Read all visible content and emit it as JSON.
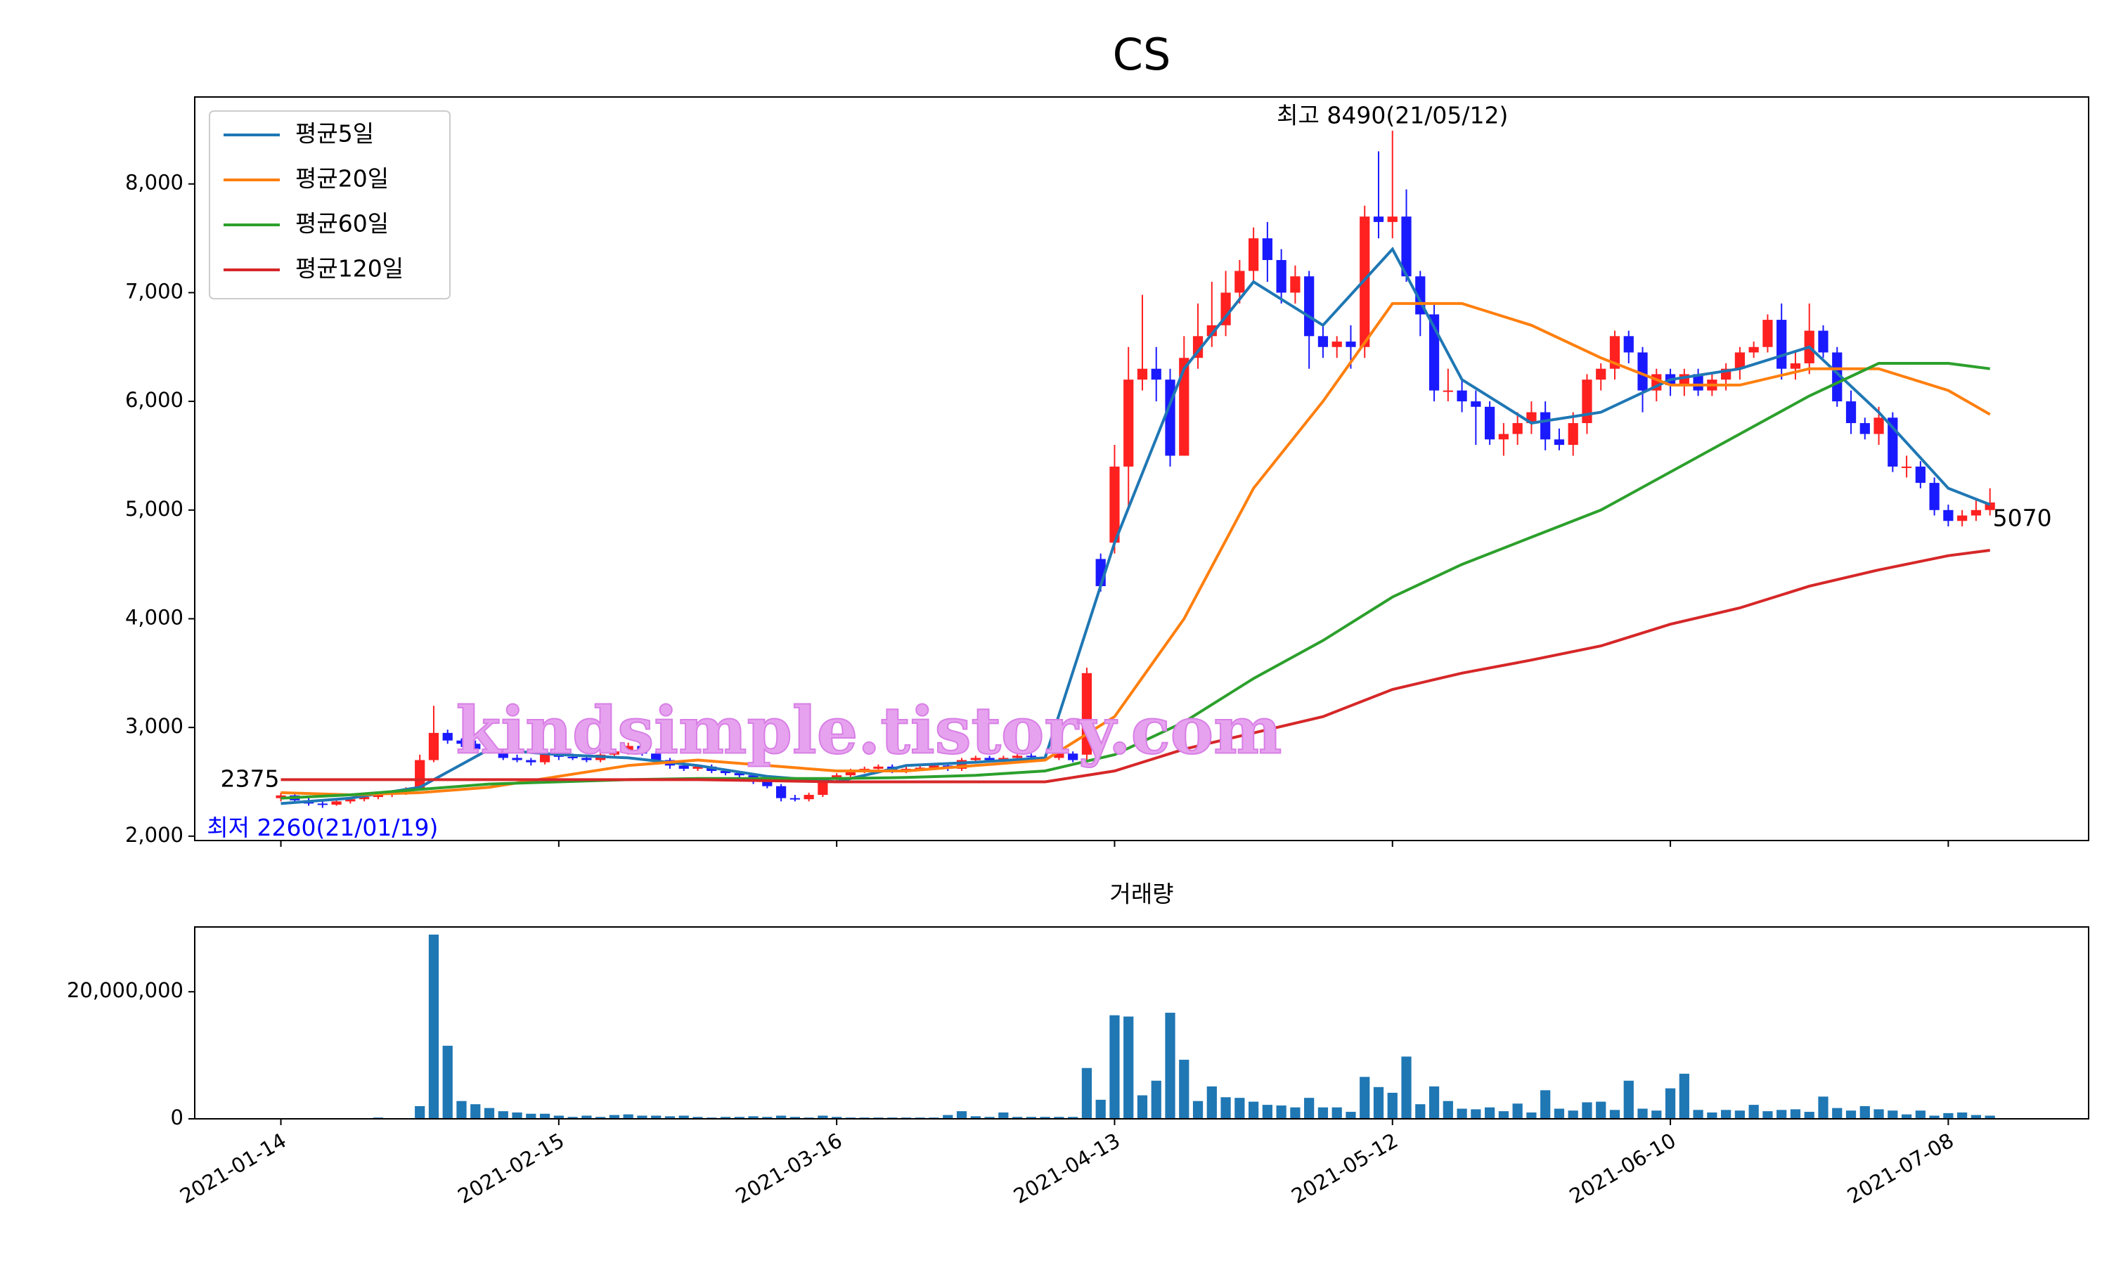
{
  "chart_data": [
    {
      "type": "candlestick",
      "title": "CS",
      "open": [
        2350,
        2375,
        2330,
        2300,
        2290,
        2320,
        2340,
        2360,
        2380,
        2400,
        2430,
        2700,
        2950,
        2880,
        2850,
        2800,
        2780,
        2720,
        2700,
        2680,
        2750,
        2730,
        2720,
        2700,
        2750,
        2780,
        2830,
        2760,
        2700,
        2650,
        2620,
        2640,
        2600,
        2580,
        2560,
        2500,
        2460,
        2350,
        2340,
        2380,
        2520,
        2560,
        2600,
        2620,
        2640,
        2600,
        2620,
        2630,
        2650,
        2620,
        2700,
        2720,
        2700,
        2720,
        2740,
        2730,
        2720,
        2760,
        2750,
        4550,
        4700,
        5400,
        6200,
        6300,
        6200,
        5500,
        6400,
        6600,
        6700,
        7000,
        7200,
        7500,
        7300,
        7000,
        7150,
        6600,
        6500,
        6550,
        6500,
        7700,
        7650,
        7700,
        7150,
        6800,
        6100,
        6100,
        6000,
        5950,
        5650,
        5700,
        5800,
        5900,
        5650,
        5600,
        5800,
        6200,
        6300,
        6600,
        6450,
        6100,
        6250,
        6150,
        6250,
        6100,
        6200,
        6300,
        6450,
        6500,
        6750,
        6300,
        6350,
        6650,
        6450,
        6000,
        5800,
        5700,
        5850,
        5400,
        5400,
        5250,
        5000,
        4900,
        4950,
        5000
      ],
      "high": [
        2400,
        2390,
        2350,
        2320,
        2340,
        2360,
        2380,
        2400,
        2420,
        2450,
        2750,
        3200,
        2980,
        2900,
        2880,
        2830,
        2800,
        2750,
        2720,
        2780,
        2780,
        2760,
        2740,
        2780,
        2800,
        2860,
        2850,
        2780,
        2720,
        2680,
        2660,
        2660,
        2620,
        2600,
        2580,
        2520,
        2480,
        2380,
        2400,
        2540,
        2580,
        2620,
        2640,
        2660,
        2660,
        2640,
        2650,
        2670,
        2660,
        2720,
        2740,
        2740,
        2740,
        2760,
        2760,
        2750,
        2780,
        2780,
        3550,
        4600,
        5600,
        6500,
        6980,
        6500,
        6300,
        6600,
        6900,
        7100,
        7200,
        7300,
        7600,
        7650,
        7400,
        7250,
        7200,
        6700,
        6600,
        6700,
        7800,
        8300,
        8490,
        7950,
        7200,
        6900,
        6300,
        6200,
        6100,
        6000,
        5800,
        5900,
        6000,
        6000,
        5750,
        5900,
        6250,
        6350,
        6650,
        6650,
        6500,
        6300,
        6300,
        6300,
        6300,
        6250,
        6350,
        6500,
        6550,
        6800,
        6900,
        6450,
        6900,
        6700,
        6500,
        6100,
        5850,
        5950,
        5900,
        5500,
        5450,
        5300,
        5050,
        5000,
        5100,
        5200
      ],
      "low": [
        2320,
        2300,
        2280,
        2260,
        2280,
        2300,
        2320,
        2340,
        2360,
        2380,
        2420,
        2680,
        2850,
        2820,
        2780,
        2760,
        2700,
        2680,
        2650,
        2660,
        2700,
        2700,
        2680,
        2680,
        2720,
        2750,
        2740,
        2680,
        2620,
        2600,
        2600,
        2580,
        2560,
        2540,
        2480,
        2440,
        2320,
        2320,
        2320,
        2360,
        2500,
        2540,
        2580,
        2600,
        2580,
        2580,
        2600,
        2610,
        2600,
        2600,
        2680,
        2680,
        2680,
        2700,
        2720,
        2700,
        2700,
        2680,
        2700,
        4250,
        4600,
        5000,
        6100,
        6000,
        5400,
        5500,
        6300,
        6500,
        6600,
        6900,
        7100,
        7100,
        6900,
        6900,
        6300,
        6400,
        6400,
        6300,
        6400,
        7500,
        7500,
        7100,
        6600,
        6000,
        6000,
        5900,
        5600,
        5600,
        5500,
        5600,
        5700,
        5550,
        5550,
        5500,
        5700,
        6100,
        6200,
        6350,
        5900,
        6000,
        6050,
        6050,
        6050,
        6050,
        6100,
        6200,
        6400,
        6450,
        6200,
        6200,
        6250,
        6400,
        5950,
        5700,
        5650,
        5600,
        5350,
        5300,
        5200,
        4950,
        4850,
        4850,
        4900,
        4950
      ],
      "close": [
        2375,
        2330,
        2300,
        2290,
        2320,
        2340,
        2360,
        2380,
        2400,
        2420,
        2700,
        2950,
        2880,
        2850,
        2800,
        2780,
        2720,
        2700,
        2680,
        2750,
        2730,
        2720,
        2700,
        2750,
        2780,
        2830,
        2760,
        2700,
        2650,
        2620,
        2640,
        2600,
        2580,
        2560,
        2500,
        2460,
        2350,
        2340,
        2380,
        2520,
        2560,
        2600,
        2620,
        2640,
        2600,
        2620,
        2630,
        2650,
        2620,
        2700,
        2720,
        2700,
        2720,
        2740,
        2730,
        2720,
        2760,
        2700,
        3500,
        4300,
        5400,
        6200,
        6300,
        6200,
        5500,
        6400,
        6600,
        6700,
        7000,
        7200,
        7500,
        7300,
        7000,
        7150,
        6600,
        6500,
        6550,
        6500,
        7700,
        7650,
        7700,
        7150,
        6800,
        6100,
        6100,
        6000,
        5950,
        5650,
        5700,
        5800,
        5900,
        5650,
        5600,
        5800,
        6200,
        6300,
        6600,
        6450,
        6100,
        6250,
        6150,
        6250,
        6100,
        6200,
        6300,
        6450,
        6500,
        6750,
        6300,
        6350,
        6650,
        6450,
        6000,
        5800,
        5700,
        5850,
        5400,
        5400,
        5250,
        5000,
        4900,
        4950,
        5000,
        5070
      ],
      "up_color": "#ff2020",
      "down_color": "#1a1aff",
      "series": [
        {
          "name": "평균5일",
          "color": "#1f77b4",
          "x": [
            0,
            5,
            10,
            15,
            20,
            25,
            30,
            35,
            40,
            45,
            50,
            55,
            60,
            65,
            70,
            75,
            80,
            85,
            90,
            95,
            100,
            105,
            110,
            115,
            120,
            123
          ],
          "values": [
            2300,
            2350,
            2450,
            2800,
            2750,
            2720,
            2650,
            2550,
            2500,
            2650,
            2680,
            2720,
            4700,
            6300,
            7100,
            6700,
            7400,
            6200,
            5800,
            5900,
            6200,
            6300,
            6500,
            5900,
            5200,
            5050
          ]
        },
        {
          "name": "평균20일",
          "color": "#ff7f0e",
          "x": [
            0,
            5,
            10,
            15,
            20,
            25,
            30,
            35,
            40,
            45,
            50,
            55,
            60,
            65,
            70,
            75,
            80,
            85,
            90,
            95,
            100,
            105,
            110,
            115,
            120,
            123
          ],
          "values": [
            2400,
            2380,
            2400,
            2450,
            2550,
            2650,
            2700,
            2650,
            2600,
            2600,
            2650,
            2700,
            3100,
            4000,
            5200,
            6000,
            6900,
            6900,
            6700,
            6400,
            6150,
            6150,
            6300,
            6300,
            6100,
            5880
          ]
        },
        {
          "name": "평균60일",
          "color": "#2ca02c",
          "x": [
            0,
            5,
            10,
            15,
            20,
            25,
            30,
            35,
            40,
            45,
            50,
            55,
            60,
            65,
            70,
            75,
            80,
            85,
            90,
            95,
            100,
            105,
            110,
            115,
            120,
            123
          ],
          "values": [
            2350,
            2380,
            2430,
            2480,
            2500,
            2520,
            2530,
            2530,
            2530,
            2540,
            2560,
            2600,
            2750,
            3050,
            3450,
            3800,
            4200,
            4500,
            4750,
            5000,
            5350,
            5700,
            6050,
            6350,
            6350,
            6300
          ]
        },
        {
          "name": "평균120일",
          "color": "#d62728",
          "x": [
            0,
            5,
            10,
            15,
            20,
            25,
            30,
            35,
            40,
            45,
            50,
            55,
            60,
            65,
            70,
            75,
            80,
            85,
            90,
            95,
            100,
            105,
            110,
            115,
            120,
            123
          ],
          "values": [
            2520,
            2520,
            2520,
            2520,
            2520,
            2520,
            2520,
            2510,
            2500,
            2500,
            2500,
            2500,
            2600,
            2800,
            2950,
            3100,
            3350,
            3500,
            3620,
            3750,
            3950,
            4100,
            4300,
            4450,
            4580,
            4630
          ]
        }
      ],
      "ylim": [
        1960,
        8800
      ],
      "yticks": [
        {
          "value": 2000,
          "label": "2,000"
        },
        {
          "value": 3000,
          "label": "3,000"
        },
        {
          "value": 4000,
          "label": "4,000"
        },
        {
          "value": 5000,
          "label": "5,000"
        },
        {
          "value": 6000,
          "label": "6,000"
        },
        {
          "value": 7000,
          "label": "7,000"
        },
        {
          "value": 8000,
          "label": "8,000"
        }
      ],
      "legend": "upper left",
      "grid": false,
      "high_label": "최고 8490(21/05/12)",
      "low_label": "최저 2260(21/01/19)",
      "first_label": "2375",
      "last_label": "5070",
      "watermark": "kindsimple.tistory.com"
    },
    {
      "type": "bar",
      "title": "거래량",
      "color": "#1f77b4",
      "categories": [
        "2021-01-14",
        null,
        null,
        null,
        null,
        null,
        null,
        null,
        null,
        null,
        null,
        null,
        null,
        null,
        null,
        null,
        null,
        null,
        null,
        null,
        "2021-02-15",
        null,
        null,
        null,
        null,
        null,
        null,
        null,
        null,
        null,
        null,
        null,
        null,
        null,
        null,
        null,
        null,
        null,
        null,
        null,
        "2021-03-16",
        null,
        null,
        null,
        null,
        null,
        null,
        null,
        null,
        null,
        null,
        null,
        null,
        null,
        null,
        null,
        null,
        null,
        null,
        null,
        "2021-04-13",
        null,
        null,
        null,
        null,
        null,
        null,
        null,
        null,
        null,
        null,
        null,
        null,
        null,
        null,
        null,
        null,
        null,
        null,
        null,
        "2021-05-12",
        null,
        null,
        null,
        null,
        null,
        null,
        null,
        null,
        null,
        null,
        null,
        null,
        null,
        null,
        null,
        null,
        null,
        null,
        null,
        "2021-06-10",
        null,
        null,
        null,
        null,
        null,
        null,
        null,
        null,
        null,
        null,
        null,
        null,
        null,
        null,
        null,
        null,
        null,
        null,
        null,
        "2021-07-08",
        null,
        null,
        null
      ],
      "values": [
        100000,
        100000,
        100000,
        100000,
        100000,
        100000,
        100000,
        200000,
        100000,
        100000,
        2000000,
        29000000,
        11500000,
        2800000,
        2300000,
        1700000,
        1200000,
        1000000,
        800000,
        800000,
        500000,
        300000,
        500000,
        300000,
        600000,
        700000,
        500000,
        500000,
        400000,
        500000,
        300000,
        200000,
        300000,
        300000,
        400000,
        300000,
        500000,
        300000,
        200000,
        500000,
        300000,
        200000,
        200000,
        200000,
        200000,
        200000,
        200000,
        200000,
        600000,
        1200000,
        400000,
        300000,
        1000000,
        300000,
        300000,
        300000,
        300000,
        300000,
        8000000,
        3000000,
        16300000,
        16100000,
        3700000,
        6000000,
        16700000,
        9300000,
        2800000,
        5100000,
        3400000,
        3300000,
        2700000,
        2200000,
        2100000,
        1800000,
        3300000,
        1800000,
        1800000,
        1100000,
        6600000,
        5000000,
        4100000,
        9800000,
        2300000,
        5100000,
        2800000,
        1600000,
        1500000,
        1800000,
        1200000,
        2400000,
        1000000,
        4500000,
        1600000,
        1300000,
        2600000,
        2700000,
        1400000,
        6000000,
        1600000,
        1300000,
        4800000,
        7100000,
        1400000,
        1000000,
        1400000,
        1300000,
        2200000,
        1200000,
        1400000,
        1500000,
        1100000,
        3500000,
        1700000,
        1300000,
        2000000,
        1500000,
        1300000,
        700000,
        1300000,
        500000,
        900000,
        1000000,
        600000,
        500000
      ],
      "ylim": [
        0,
        30200000
      ],
      "yticks": [
        0,
        {
          "value": 20000000,
          "label": "20,000,000"
        }
      ]
    }
  ]
}
